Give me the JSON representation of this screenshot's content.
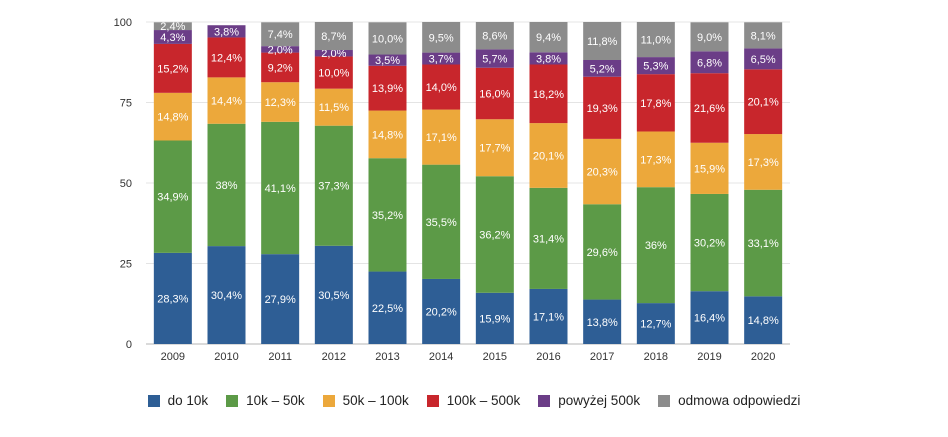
{
  "chart_data": {
    "type": "bar",
    "stacked": true,
    "categories": [
      "2009",
      "2010",
      "2011",
      "2012",
      "2013",
      "2014",
      "2015",
      "2016",
      "2017",
      "2018",
      "2019",
      "2020"
    ],
    "ylim": [
      0,
      100
    ],
    "yticks": [
      0,
      25,
      50,
      75,
      100
    ],
    "grid": true,
    "legend_placement": "bottom",
    "series": [
      {
        "name": "do 10k",
        "color": "#2e5e95",
        "values": [
          28.3,
          30.4,
          27.9,
          30.5,
          22.5,
          20.2,
          15.9,
          17.1,
          13.8,
          12.7,
          16.4,
          14.8
        ],
        "labels": [
          "28,3%",
          "30,4%",
          "27,9%",
          "30,5%",
          "22,5%",
          "20,2%",
          "15,9%",
          "17,1%",
          "13,8%",
          "12,7%",
          "16,4%",
          "14,8%"
        ]
      },
      {
        "name": "10k – 50k",
        "color": "#5c9a47",
        "values": [
          34.9,
          38,
          41.1,
          37.3,
          35.2,
          35.5,
          36.2,
          31.4,
          29.6,
          36,
          30.2,
          33.1
        ],
        "labels": [
          "34,9%",
          "38%",
          "41,1%",
          "37,3%",
          "35,2%",
          "35,5%",
          "36,2%",
          "31,4%",
          "29,6%",
          "36%",
          "30,2%",
          "33,1%"
        ]
      },
      {
        "name": "50k – 100k",
        "color": "#eca83b",
        "values": [
          14.8,
          14.4,
          12.3,
          11.5,
          14.8,
          17.1,
          17.7,
          20.1,
          20.3,
          17.3,
          15.9,
          17.3
        ],
        "labels": [
          "14,8%",
          "14,4%",
          "12,3%",
          "11,5%",
          "14,8%",
          "17,1%",
          "17,7%",
          "20,1%",
          "20,3%",
          "17,3%",
          "15,9%",
          "17,3%"
        ]
      },
      {
        "name": "100k – 500k",
        "color": "#c8262c",
        "values": [
          15.2,
          12.4,
          9.2,
          10.0,
          13.9,
          14.0,
          16.0,
          18.2,
          19.3,
          17.8,
          21.6,
          20.1
        ],
        "labels": [
          "15,2%",
          "12,4%",
          "9,2%",
          "10,0%",
          "13,9%",
          "14,0%",
          "16,0%",
          "18,2%",
          "19,3%",
          "17,8%",
          "21,6%",
          "20,1%"
        ]
      },
      {
        "name": "powyżej 500k",
        "color": "#6b3d87",
        "values": [
          4.3,
          3.8,
          2.0,
          2.0,
          3.5,
          3.7,
          5.7,
          3.8,
          5.2,
          5.3,
          6.8,
          6.5
        ],
        "labels": [
          "4,3%",
          "3,8%",
          "2,0%",
          "2,0%",
          "3,5%",
          "3,7%",
          "5,7%",
          "3,8%",
          "5,2%",
          "5,3%",
          "6,8%",
          "6,5%"
        ]
      },
      {
        "name": "odmowa odpowiedzi",
        "color": "#8c8c8c",
        "values": [
          2.4,
          0,
          7.4,
          8.7,
          10.0,
          9.5,
          8.6,
          9.4,
          11.8,
          11.0,
          9.0,
          8.1
        ],
        "labels": [
          "2,4%",
          "",
          "7,4%",
          "8,7%",
          "10,0%",
          "9,5%",
          "8,6%",
          "9,4%",
          "11,8%",
          "11,0%",
          "9,0%",
          "8,1%"
        ]
      }
    ]
  }
}
